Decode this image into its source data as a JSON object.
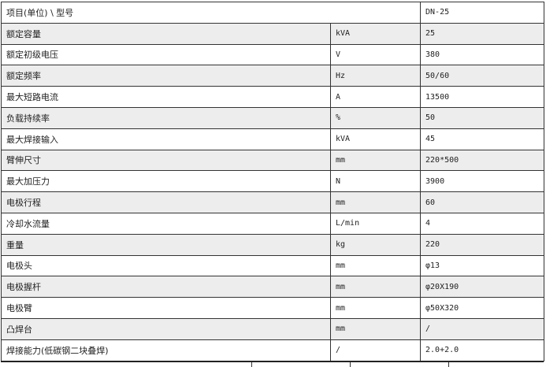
{
  "header": {
    "item": "项目(单位) \\ 型号",
    "model": "DN-25"
  },
  "rows": [
    {
      "name": "额定容量",
      "unit": "kVA",
      "value": "25"
    },
    {
      "name": "额定初级电压",
      "unit": "V",
      "value": "380"
    },
    {
      "name": "额定频率",
      "unit": "Hz",
      "value": "50/60"
    },
    {
      "name": "最大短路电流",
      "unit": "A",
      "value": "13500"
    },
    {
      "name": "负载持续率",
      "unit": "%",
      "value": "50"
    },
    {
      "name": "最大焊接输入",
      "unit": "kVA",
      "value": "45"
    },
    {
      "name": "臂伸尺寸",
      "unit": "mm",
      "value": "220*500"
    },
    {
      "name": "最大加压力",
      "unit": "N",
      "value": "3900"
    },
    {
      "name": "电极行程",
      "unit": "mm",
      "value": "60"
    },
    {
      "name": "冷却水流量",
      "unit": "L/min",
      "value": "4"
    },
    {
      "name": "重量",
      "unit": "kg",
      "value": "220"
    },
    {
      "name": "电极头",
      "unit": "mm",
      "value": "φ13"
    },
    {
      "name": "电极握杆",
      "unit": "mm",
      "value": "φ20X190"
    },
    {
      "name": "电极臂",
      "unit": "mm",
      "value": "φ50X320"
    },
    {
      "name": "凸焊台",
      "unit": "mm",
      "value": "/"
    },
    {
      "name": "焊接能力(低碳钢二块叠焊)",
      "unit": "/",
      "value": "2.0+2.0"
    }
  ]
}
